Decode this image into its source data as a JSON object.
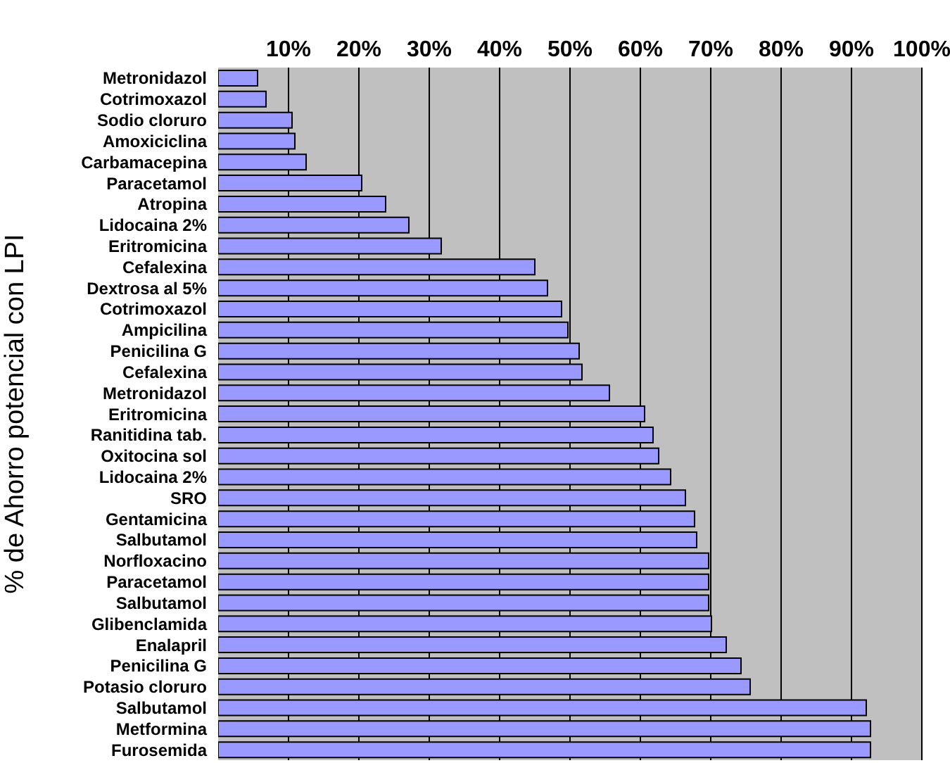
{
  "chart_data": {
    "type": "bar",
    "orientation": "horizontal",
    "ylabel": "% de Ahorro potencial con LPI",
    "categories": [
      "Metronidazol",
      "Cotrimoxazol",
      "Sodio cloruro",
      "Amoxiciclina",
      "Carbamacepina",
      "Paracetamol",
      "Atropina",
      "Lidocaina 2%",
      "Eritromicina",
      "Cefalexina",
      "Dextrosa al 5%",
      "Cotrimoxazol",
      "Ampicilina",
      "Penicilina G",
      "Cefalexina",
      "Metronidazol",
      "Eritromicina",
      "Ranitidina tab.",
      "Oxitocina sol",
      "Lidocaina 2%",
      "SRO",
      "Gentamicina",
      "Salbutamol",
      "Norfloxacino",
      "Paracetamol",
      "Salbutamol",
      "Glibenclamida",
      "Enalapril",
      "Penicilina G",
      "Potasio cloruro",
      "Salbutamol",
      "Metformina",
      "Furosemida"
    ],
    "values": [
      5.6,
      6.8,
      10.5,
      10.9,
      12.5,
      20.4,
      23.8,
      27.1,
      31.7,
      45,
      46.8,
      48.8,
      49.7,
      51.3,
      51.7,
      55.6,
      60.6,
      61.8,
      62.6,
      64.3,
      66.4,
      67.7,
      68,
      69.7,
      69.7,
      69.7,
      70.1,
      72.2,
      74.3,
      75.6,
      92.1,
      92.7,
      92.7
    ],
    "color": "#9999ff",
    "xlim": [
      0,
      100
    ],
    "xticks": [
      {
        "value": 10,
        "label": "10%"
      },
      {
        "value": 20,
        "label": "20%"
      },
      {
        "value": 30,
        "label": "30%"
      },
      {
        "value": 40,
        "label": "40%"
      },
      {
        "value": 50,
        "label": "50%"
      },
      {
        "value": 60,
        "label": "60%"
      },
      {
        "value": 70,
        "label": "70%"
      },
      {
        "value": 80,
        "label": "80%"
      },
      {
        "value": 90,
        "label": "90%"
      },
      {
        "value": 100,
        "label": "100%"
      }
    ],
    "grid": "x"
  }
}
